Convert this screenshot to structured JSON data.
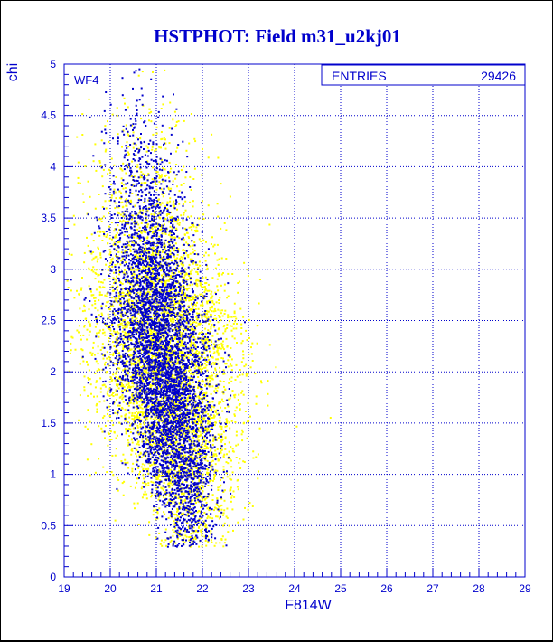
{
  "chart_data": {
    "type": "scatter",
    "title": "HSTPHOT: Field m31_u2kj01",
    "xlabel": "F814W",
    "ylabel": "chi",
    "xlim": [
      19,
      29
    ],
    "ylim": [
      0,
      5
    ],
    "x_ticks": [
      "19",
      "20",
      "21",
      "22",
      "23",
      "24",
      "25",
      "26",
      "27",
      "28",
      "29"
    ],
    "y_ticks": [
      "0",
      "0.5",
      "1",
      "1.5",
      "2",
      "2.5",
      "3",
      "3.5",
      "4",
      "4.5",
      "5"
    ],
    "grid": true,
    "panel_tag": "WF4",
    "stats_box": {
      "label": "ENTRIES",
      "value": "29426"
    },
    "series_colors": {
      "primary": "#0000cc",
      "secondary": "#ffff00"
    },
    "density_profile": {
      "chi_levels": [
        0.5,
        1.0,
        1.5,
        2.0,
        2.5,
        3.0,
        3.5,
        4.0,
        4.5,
        5.0
      ],
      "mag_center": [
        21.7,
        21.5,
        21.3,
        21.1,
        21.0,
        20.9,
        20.8,
        20.7,
        20.6,
        20.6
      ],
      "mag_spread": [
        0.35,
        0.45,
        0.55,
        0.6,
        0.6,
        0.55,
        0.5,
        0.5,
        0.5,
        0.5
      ]
    }
  },
  "colors": {
    "axis": "#0000cc",
    "title": "#0000cc",
    "background": "#ffffff",
    "frame": "#000000"
  }
}
